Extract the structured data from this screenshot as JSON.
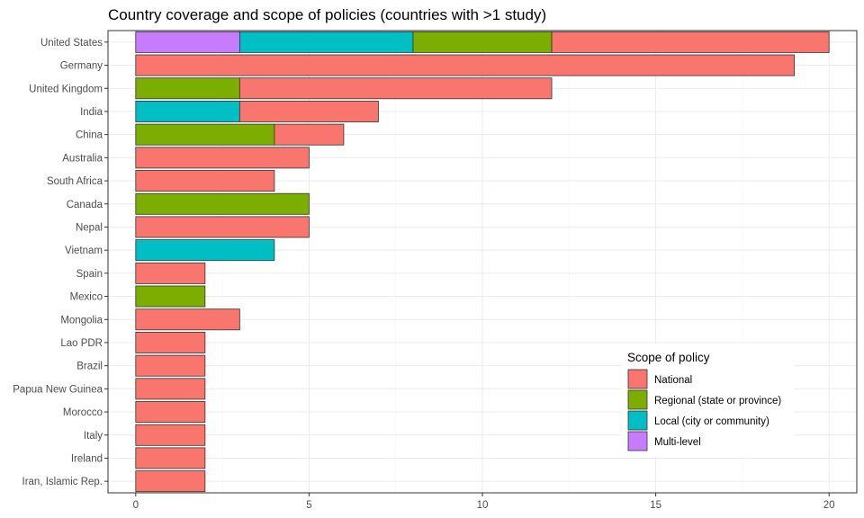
{
  "chart_data": {
    "type": "bar",
    "orientation": "horizontal",
    "stacked": true,
    "title": "Country coverage and scope of policies (countries with >1 study)",
    "xlabel": "",
    "ylabel": "",
    "xlim": [
      -0.8,
      20.8
    ],
    "xticks": [
      0,
      5,
      10,
      15,
      20
    ],
    "grid": true,
    "legend_title": "Scope of policy",
    "legend_position": "bottom-right",
    "categories": [
      "United States",
      "Germany",
      "United Kingdom",
      "India",
      "China",
      "Australia",
      "South Africa",
      "Canada",
      "Nepal",
      "Vietnam",
      "Spain",
      "Mexico",
      "Mongolia",
      "Lao PDR",
      "Brazil",
      "Papua New Guinea",
      "Morocco",
      "Italy",
      "Ireland",
      "Iran, Islamic Rep."
    ],
    "stack_order": [
      "Multi-level",
      "Local (city or community)",
      "Regional (state or province)",
      "National"
    ],
    "series": [
      {
        "name": "National",
        "color": "#F8766D",
        "values": [
          8,
          19,
          9,
          4,
          2,
          5,
          4,
          0,
          5,
          0,
          2,
          0,
          3,
          2,
          2,
          2,
          2,
          2,
          2,
          2
        ]
      },
      {
        "name": "Regional (state or province)",
        "color": "#7CAE00",
        "values": [
          4,
          0,
          3,
          0,
          4,
          0,
          0,
          5,
          0,
          0,
          0,
          2,
          0,
          0,
          0,
          0,
          0,
          0,
          0,
          0
        ]
      },
      {
        "name": "Local (city or community)",
        "color": "#00BFC4",
        "values": [
          5,
          0,
          0,
          3,
          0,
          0,
          0,
          0,
          0,
          4,
          0,
          0,
          0,
          0,
          0,
          0,
          0,
          0,
          0,
          0
        ]
      },
      {
        "name": "Multi-level",
        "color": "#C77CFF",
        "values": [
          3,
          0,
          0,
          0,
          0,
          0,
          0,
          0,
          0,
          0,
          0,
          0,
          0,
          0,
          0,
          0,
          0,
          0,
          0,
          0
        ]
      }
    ]
  }
}
